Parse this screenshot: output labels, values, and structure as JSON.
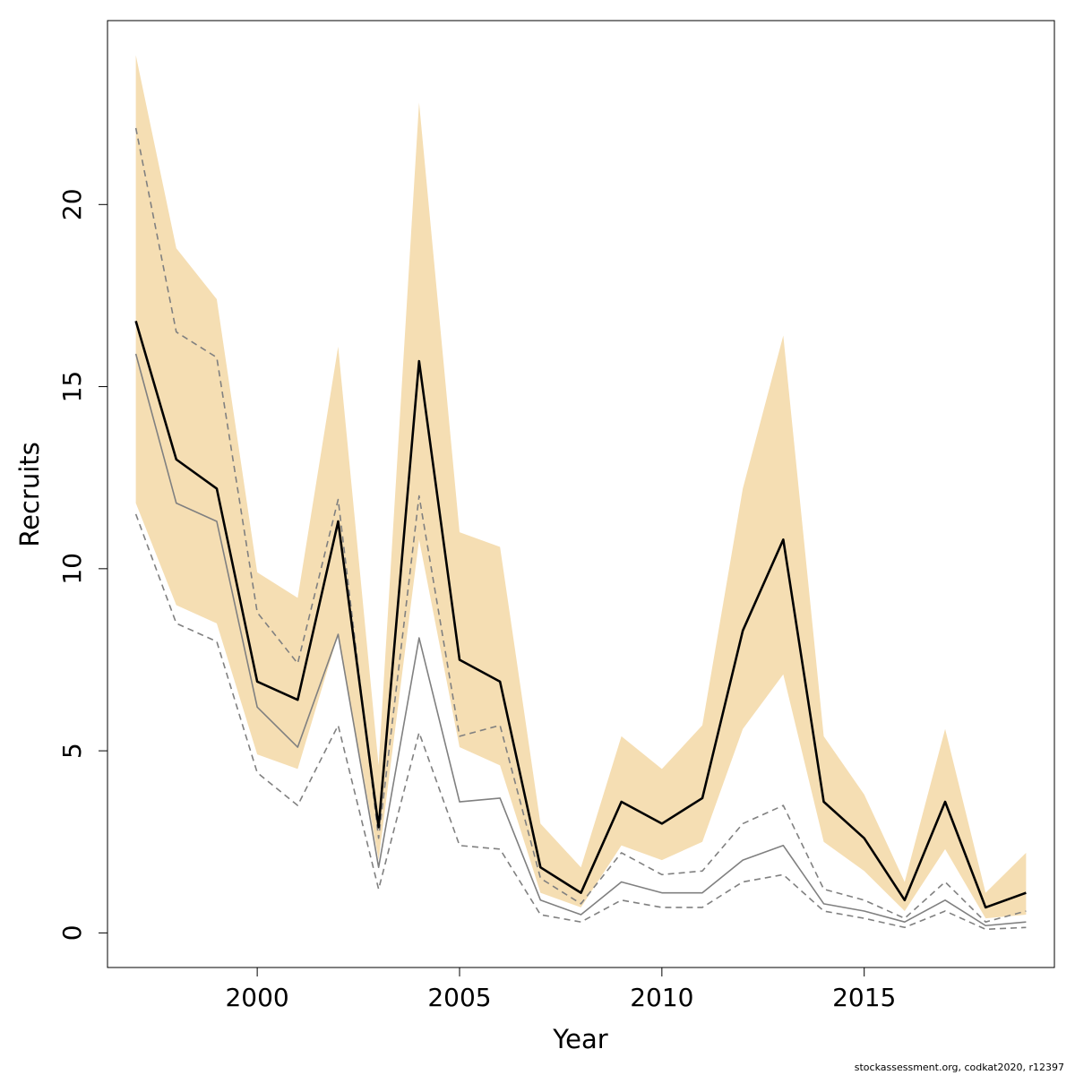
{
  "chart_data": {
    "type": "line",
    "xlabel": "Year",
    "ylabel": "Recruits",
    "xlim": [
      1996.3,
      2019.7
    ],
    "ylim": [
      -0.95,
      25.05
    ],
    "x_ticks": [
      2000,
      2005,
      2010,
      2015
    ],
    "y_ticks": [
      0,
      5,
      10,
      15,
      20
    ],
    "grid": false,
    "legend": "none",
    "colors": {
      "band": "#f5deb3",
      "estimate": "#000000",
      "previous": "#808080"
    },
    "x": [
      1997,
      1998,
      1999,
      2000,
      2001,
      2002,
      2003,
      2004,
      2005,
      2006,
      2007,
      2008,
      2009,
      2010,
      2011,
      2012,
      2013,
      2014,
      2015,
      2016,
      2017,
      2018,
      2019
    ],
    "series": [
      {
        "role": "band_lower",
        "values": [
          11.8,
          9.0,
          8.5,
          4.9,
          4.5,
          8.2,
          2.0,
          10.8,
          5.1,
          4.6,
          1.1,
          0.7,
          2.4,
          2.0,
          2.5,
          5.6,
          7.1,
          2.5,
          1.7,
          0.6,
          2.3,
          0.4,
          0.5
        ]
      },
      {
        "role": "band_upper",
        "values": [
          24.1,
          18.8,
          17.4,
          9.9,
          9.2,
          16.1,
          4.6,
          22.8,
          11.0,
          10.6,
          3.0,
          1.8,
          5.4,
          4.5,
          5.7,
          12.2,
          16.4,
          5.4,
          3.8,
          1.4,
          5.6,
          1.1,
          2.2
        ]
      },
      {
        "role": "estimate",
        "values": [
          16.8,
          13.0,
          12.2,
          6.9,
          6.4,
          11.3,
          2.9,
          15.7,
          7.5,
          6.9,
          1.8,
          1.1,
          3.6,
          3.0,
          3.7,
          8.3,
          10.8,
          3.6,
          2.6,
          0.9,
          3.6,
          0.7,
          1.1
        ]
      },
      {
        "role": "previous",
        "values": [
          15.9,
          11.8,
          11.3,
          6.2,
          5.1,
          8.2,
          1.8,
          8.1,
          3.6,
          3.7,
          0.9,
          0.5,
          1.4,
          1.1,
          1.1,
          2.0,
          2.4,
          0.8,
          0.6,
          0.3,
          0.9,
          0.2,
          0.3
        ]
      },
      {
        "role": "previous_upper",
        "values": [
          22.1,
          16.5,
          15.8,
          8.8,
          7.4,
          11.9,
          2.6,
          12.0,
          5.4,
          5.7,
          1.5,
          0.8,
          2.2,
          1.6,
          1.7,
          3.0,
          3.5,
          1.2,
          0.9,
          0.4,
          1.4,
          0.3,
          0.6
        ]
      },
      {
        "role": "previous_lower",
        "values": [
          11.5,
          8.5,
          8.0,
          4.4,
          3.5,
          5.7,
          1.2,
          5.5,
          2.4,
          2.3,
          0.5,
          0.3,
          0.9,
          0.7,
          0.7,
          1.4,
          1.6,
          0.6,
          0.4,
          0.15,
          0.6,
          0.1,
          0.15
        ]
      }
    ]
  },
  "footer_text": "stockassessment.org, codkat2020, r12397"
}
